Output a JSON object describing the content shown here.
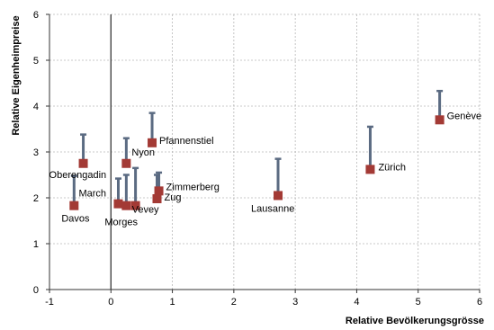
{
  "chart_data": {
    "type": "scatter",
    "title": "",
    "xlabel": "Relative Bevölkerungsgrösse",
    "ylabel": "Relative Eigenheimpreise",
    "xlim": [
      -1,
      6
    ],
    "ylim": [
      0,
      6
    ],
    "xticks": [
      "-1",
      "0",
      "1",
      "2",
      "3",
      "4",
      "5",
      "6"
    ],
    "yticks": [
      "0",
      "1",
      "2",
      "3",
      "4",
      "5",
      "6"
    ],
    "grid": "dashed",
    "colors": {
      "point": "#a33a35",
      "bar": "#5b6b82",
      "grid": "#b8b8b8",
      "zero_line": "#444444"
    },
    "points": [
      {
        "label": "Davos",
        "x": -0.6,
        "y": 1.83,
        "upper": 2.48
      },
      {
        "label": "Oberengadin",
        "x": -0.45,
        "y": 2.75,
        "upper": 3.38
      },
      {
        "label": "March",
        "x": 0.12,
        "y": 1.87,
        "upper": 2.42
      },
      {
        "label": "Morges",
        "x": 0.25,
        "y": 1.83,
        "upper": 2.5
      },
      {
        "label": "Vevey",
        "x": 0.4,
        "y": 1.83,
        "upper": 2.65
      },
      {
        "label": "Nyon",
        "x": 0.25,
        "y": 2.75,
        "upper": 3.3
      },
      {
        "label": "Pfannenstiel",
        "x": 0.67,
        "y": 3.2,
        "upper": 3.85
      },
      {
        "label": "Zimmerberg",
        "x": 0.78,
        "y": 2.15,
        "upper": 2.55
      },
      {
        "label": "Zug",
        "x": 0.75,
        "y": 1.98,
        "upper": 2.5
      },
      {
        "label": "Lausanne",
        "x": 2.72,
        "y": 2.05,
        "upper": 2.85
      },
      {
        "label": "Zürich",
        "x": 4.22,
        "y": 2.62,
        "upper": 3.55
      },
      {
        "label": "Genève",
        "x": 5.35,
        "y": 3.7,
        "upper": 4.33
      }
    ]
  }
}
